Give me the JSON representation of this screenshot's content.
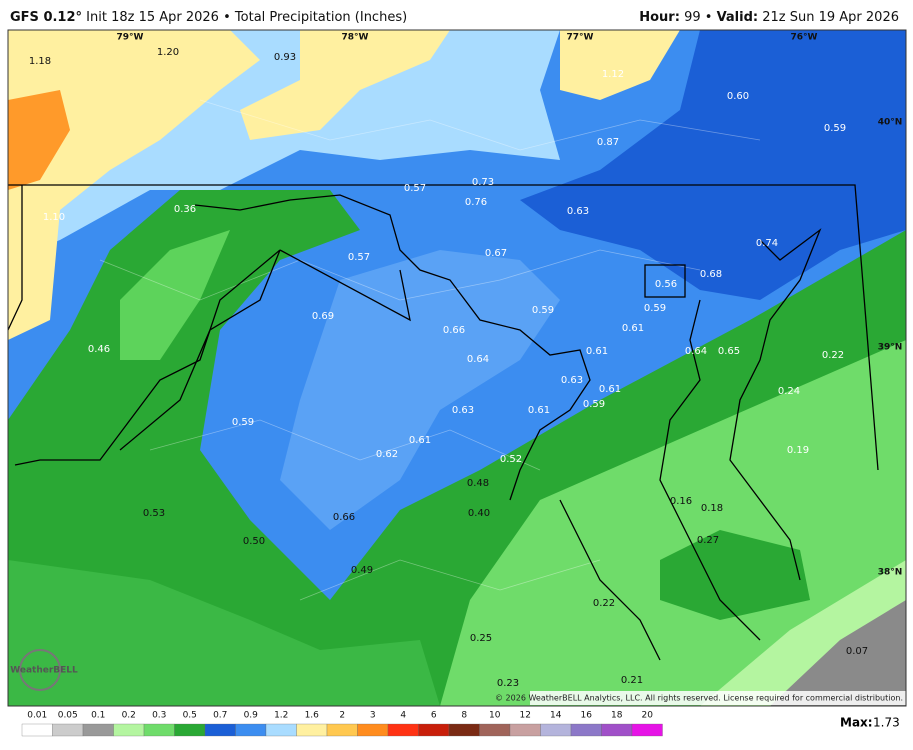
{
  "header": {
    "model": "GFS 0.12°",
    "init": "Init 18z 15 Apr 2026",
    "separator": "•",
    "product": "Total Precipitation (Inches)",
    "hour_label": "Hour:",
    "hour": "99",
    "valid_label": "Valid:",
    "valid": "21z Sun 19 Apr 2026"
  },
  "map": {
    "graticule": [
      "79°W",
      "78°W",
      "77°W",
      "76°W",
      "40°N",
      "39°N",
      "38°N"
    ],
    "labels": [
      "1.18",
      "1.20",
      "0.93",
      "1.12",
      "0.60",
      "0.59",
      "0.87",
      "0.57",
      "0.73",
      "0.76",
      "0.63",
      "0.36",
      "1.10",
      "0.74",
      "0.57",
      "0.67",
      "0.68",
      "0.56",
      "0.59",
      "0.69",
      "0.59",
      "0.66",
      "0.61",
      "0.46",
      "0.61",
      "0.64",
      "0.65",
      "0.22",
      "0.64",
      "0.63",
      "0.61",
      "0.24",
      "0.59",
      "0.63",
      "0.61",
      "0.59",
      "0.61",
      "0.62",
      "0.19",
      "0.52",
      "0.48",
      "0.16",
      "0.18",
      "0.40",
      "0.53",
      "0.66",
      "0.27",
      "0.50",
      "0.49",
      "0.22",
      "0.25",
      "0.07",
      "0.23",
      "0.21"
    ],
    "logo": "WeatherBELL",
    "copyright": "© 2026 WeatherBELL Analytics, LLC. All rights reserved. License required for commercial distribution."
  },
  "colorbar": {
    "labels": [
      "0.01",
      "0.05",
      "0.1",
      "0.2",
      "0.3",
      "0.5",
      "0.7",
      "0.9",
      "1.2",
      "1.6",
      "2",
      "3",
      "4",
      "6",
      "8",
      "10",
      "12",
      "14",
      "16",
      "18",
      "20"
    ],
    "colors": [
      "#ffffff",
      "#cccccc",
      "#999999",
      "#b4f5a0",
      "#6fdc6a",
      "#2aa834",
      "#1b5fd6",
      "#3c8df0",
      "#a9dcff",
      "#fff0a0",
      "#ffc850",
      "#ff8c1e",
      "#ff3214",
      "#c81e0a",
      "#7a2a14",
      "#a0645a",
      "#c8a0a0",
      "#b4b4dc",
      "#8c78c8",
      "#a050c8",
      "#e614e6"
    ]
  },
  "footer": {
    "max_label": "Max:",
    "max": "1.73"
  }
}
